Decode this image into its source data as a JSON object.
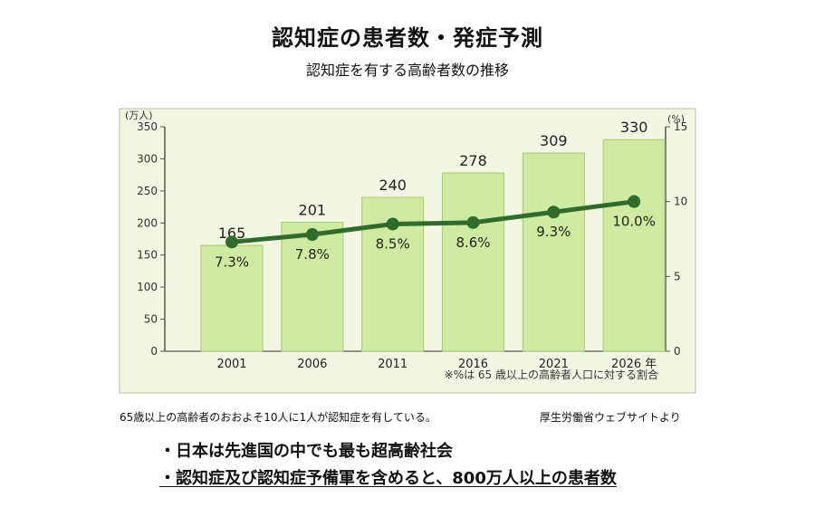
{
  "title": "認知症の患者数・発症予測",
  "subtitle": "認知症を有する高齢者数の推移",
  "chart_data": {
    "type": "bar",
    "categories": [
      "2001",
      "2006",
      "2011",
      "2016",
      "2021",
      "2026 年"
    ],
    "series": [
      {
        "values": [
          165,
          201,
          240,
          278,
          309,
          330
        ],
        "type": "bar",
        "axis": "left",
        "color": "#cfeaa1"
      },
      {
        "values": [
          7.3,
          7.8,
          8.5,
          8.6,
          9.3,
          10.0
        ],
        "type": "line",
        "axis": "right",
        "color": "#2f6b2a"
      }
    ],
    "bar_labels": [
      "165",
      "201",
      "240",
      "278",
      "309",
      "330"
    ],
    "line_labels": [
      "7.3%",
      "7.8%",
      "8.5%",
      "8.6%",
      "9.3%",
      "10.0%"
    ],
    "left_axis": {
      "unit": "(万人)",
      "ylim": [
        0,
        350
      ],
      "ticks": [
        "0",
        "50",
        "100",
        "150",
        "200",
        "250",
        "300",
        "350"
      ]
    },
    "right_axis": {
      "unit": "(%)",
      "ylim": [
        0,
        15
      ],
      "ticks": [
        "0",
        "5",
        "10",
        "15"
      ]
    },
    "note": "※%は 65 歳以上の高齢者人口に対する割合",
    "background": "#f4f6e4",
    "grid": false
  },
  "caption_left": "65歳以上の高齢者のおおよそ10人に1人が認知症を有している。",
  "caption_right": "厚生労働省ウェブサイトより",
  "bullets": [
    "・日本は先進国の中でも最も超高齢社会",
    "・認知症及び認知症予備軍を含めると、800万人以上の患者数"
  ]
}
